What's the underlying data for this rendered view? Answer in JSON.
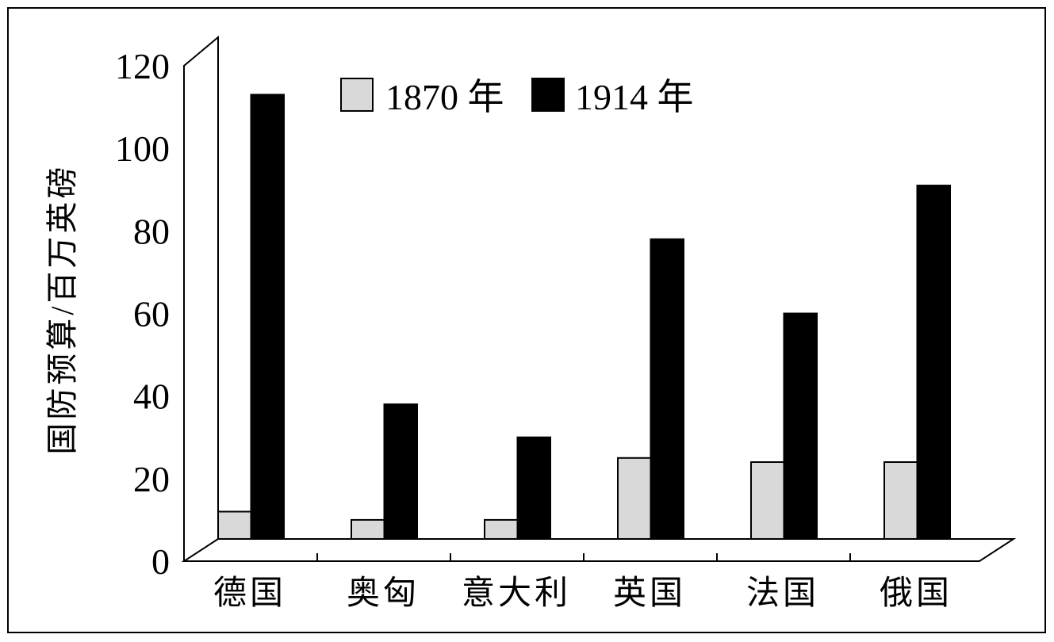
{
  "chart_data": {
    "type": "bar",
    "title": "",
    "xlabel": "",
    "ylabel": "国防预算/百万英磅",
    "ylim": [
      0,
      120
    ],
    "yticks": [
      "0",
      "20",
      "40",
      "60",
      "80",
      "100",
      "120"
    ],
    "categories": [
      "德国",
      "奥匈",
      "意大利",
      "英国",
      "法国",
      "俄国"
    ],
    "series": [
      {
        "name": "1870 年",
        "color": "#d9d9d9",
        "values": [
          12,
          10,
          10,
          25,
          24,
          24
        ]
      },
      {
        "name": "1914 年",
        "color": "#000000",
        "values": [
          113,
          38,
          30,
          78,
          60,
          91
        ]
      }
    ],
    "legend": "top",
    "grid": false
  }
}
